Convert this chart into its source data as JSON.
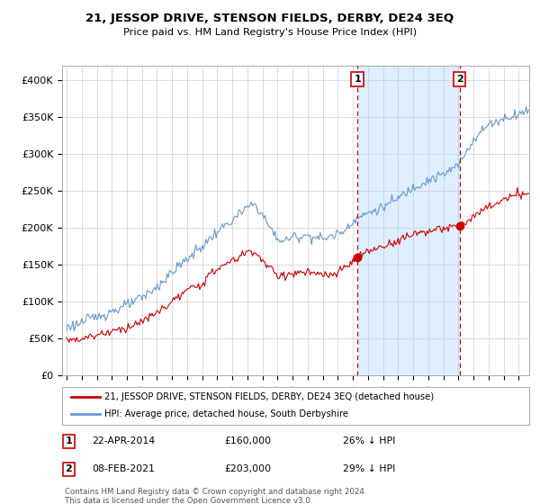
{
  "title": "21, JESSOP DRIVE, STENSON FIELDS, DERBY, DE24 3EQ",
  "subtitle": "Price paid vs. HM Land Registry's House Price Index (HPI)",
  "ylim": [
    0,
    420000
  ],
  "yticks": [
    0,
    50000,
    100000,
    150000,
    200000,
    250000,
    300000,
    350000,
    400000
  ],
  "ytick_labels": [
    "£0",
    "£50K",
    "£100K",
    "£150K",
    "£200K",
    "£250K",
    "£300K",
    "£350K",
    "£400K"
  ],
  "point1": {
    "date_label": "22-APR-2014",
    "price": 160000,
    "hpi_diff": "26% ↓ HPI",
    "year": 2014.3
  },
  "point2": {
    "date_label": "08-FEB-2021",
    "price": 203000,
    "hpi_diff": "29% ↓ HPI",
    "year": 2021.08
  },
  "legend_red": "21, JESSOP DRIVE, STENSON FIELDS, DERBY, DE24 3EQ (detached house)",
  "legend_blue": "HPI: Average price, detached house, South Derbyshire",
  "footnote": "Contains HM Land Registry data © Crown copyright and database right 2024.\nThis data is licensed under the Open Government Licence v3.0.",
  "background_color": "#ffffff",
  "grid_color": "#cccccc",
  "red_line_color": "#cc0000",
  "blue_line_color": "#6699cc",
  "shade_color": "#ddeeff",
  "dashed_line_color": "#cc0000"
}
